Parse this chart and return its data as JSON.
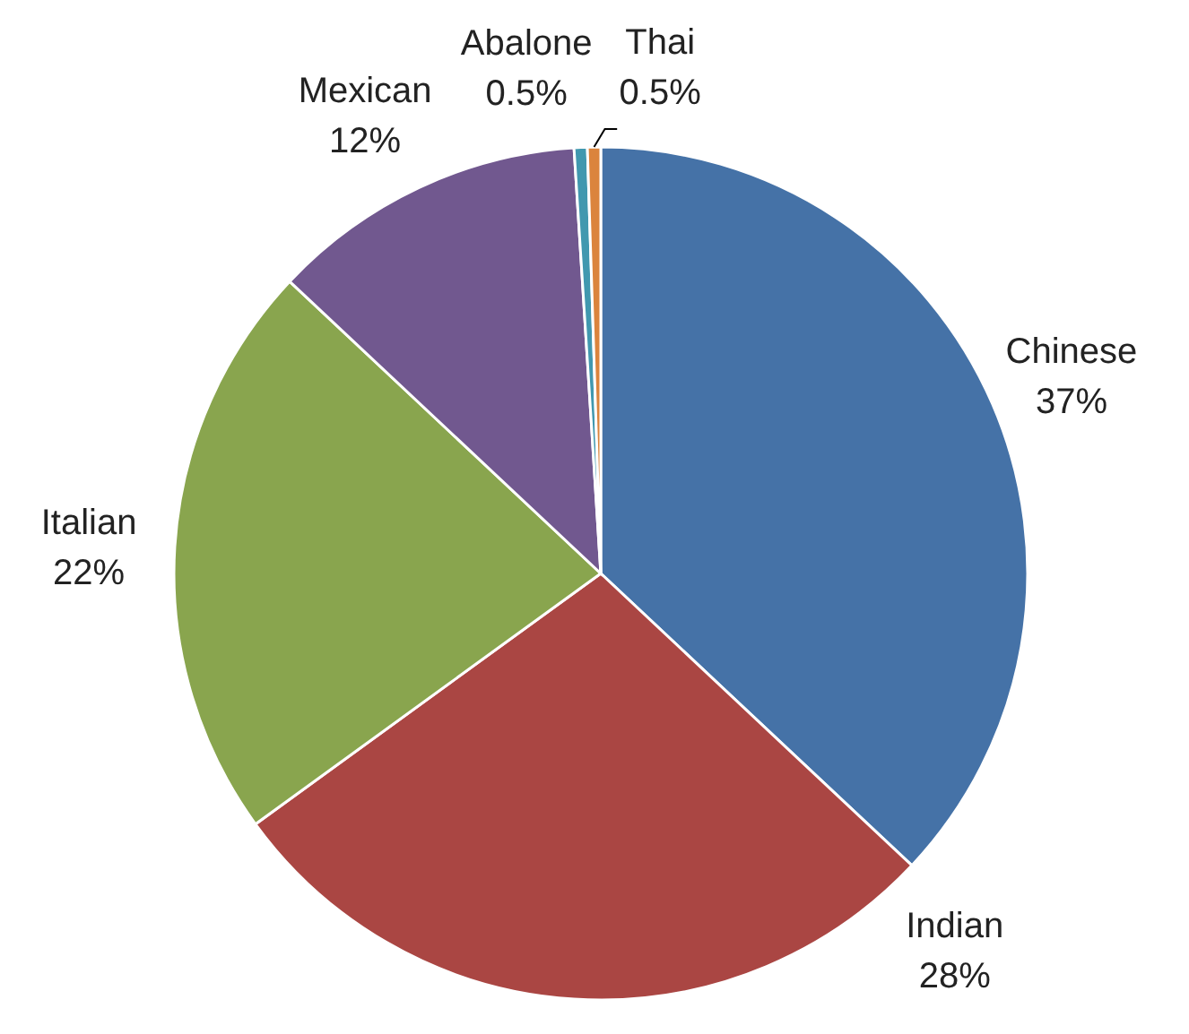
{
  "chart_data": {
    "type": "pie",
    "categories": [
      "Chinese",
      "Indian",
      "Italian",
      "Mexican",
      "Abalone",
      "Thai"
    ],
    "values": [
      37,
      28,
      22,
      12,
      0.5,
      0.5
    ],
    "colors": [
      "#4572a7",
      "#aa4643",
      "#89a54e",
      "#71588f",
      "#4198af",
      "#db843d"
    ],
    "value_labels": [
      "37%",
      "28%",
      "22%",
      "12%",
      "0.5%",
      "0.5%"
    ]
  }
}
